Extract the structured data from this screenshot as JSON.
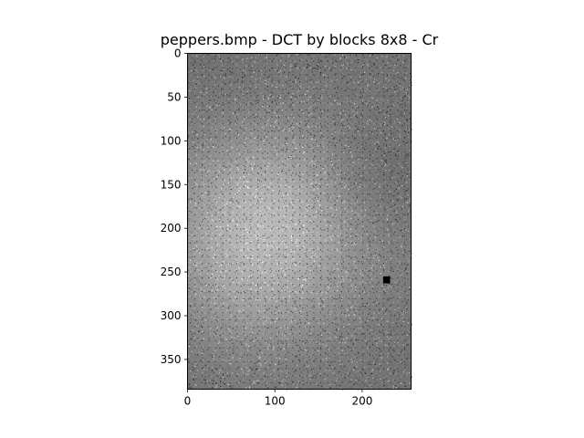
{
  "chart_data": {
    "type": "heatmap",
    "title": "peppers.bmp - DCT by blocks 8x8 - Cr",
    "xlabel": "",
    "ylabel": "",
    "xlim": [
      0,
      256
    ],
    "ylim": [
      384,
      0
    ],
    "x_ticks": [
      0,
      100,
      200
    ],
    "y_ticks": [
      0,
      50,
      100,
      150,
      200,
      250,
      300,
      350
    ],
    "x_tick_labels": [
      "0",
      "100",
      "200"
    ],
    "y_tick_labels": [
      "0",
      "50",
      "100",
      "150",
      "200",
      "250",
      "300",
      "350"
    ],
    "block_size": 8,
    "colormap": "gray",
    "grid": false,
    "image_width": 256,
    "image_height": 384,
    "dc_block_values_rows_of_32": [
      [
        0.52,
        0.52,
        0.52,
        0.52,
        0.52,
        0.52,
        0.52,
        0.52,
        0.52,
        0.52,
        0.52,
        0.52,
        0.52,
        0.52,
        0.52,
        0.52,
        0.52,
        0.52,
        0.52,
        0.52,
        0.52,
        0.52,
        0.52,
        0.52,
        0.52,
        0.52,
        0.52,
        0.52,
        0.52,
        0.52,
        0.52,
        0.52
      ],
      [
        0.52,
        0.52,
        0.52,
        0.52,
        0.52,
        0.52,
        0.52,
        0.52,
        0.52,
        0.52,
        0.52,
        0.52,
        0.52,
        0.52,
        0.52,
        0.52,
        0.52,
        0.52,
        0.52,
        0.52,
        0.52,
        0.52,
        0.52,
        0.52,
        0.52,
        0.52,
        0.52,
        0.52,
        0.52,
        0.52,
        0.52,
        0.52
      ]
    ]
  }
}
